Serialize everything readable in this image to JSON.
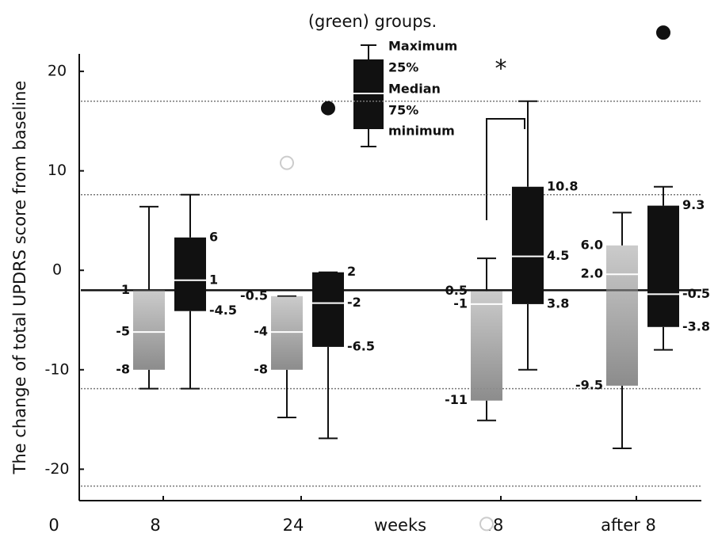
{
  "chart_data": {
    "type": "box",
    "title": "(green) groups.",
    "y_label": "The change of total UPDRS score from baseline",
    "x_label": "weeks",
    "x_origin_label": "0",
    "ylim": [
      -23,
      22
    ],
    "yticks": [
      -20,
      -10,
      0,
      10,
      20
    ],
    "colors": [
      "#8c8c8c",
      "#111111"
    ],
    "baseline": -2,
    "reference_lines": [
      17,
      7.6,
      -11.9,
      -21.7
    ],
    "legend_labels": [
      "Maximum",
      "25%",
      "Median",
      "75%",
      "minimum"
    ],
    "significance": "*",
    "groups": [
      {
        "label": "8",
        "boxes": [
          {
            "min": -11.9,
            "q1": -10,
            "median": -6.2,
            "q3": -2,
            "max": 6.4,
            "outliers": [],
            "notes": [
              "1",
              "-5",
              "-8"
            ]
          },
          {
            "min": -11.9,
            "q1": -4.1,
            "median": -1,
            "q3": 3.3,
            "max": 7.6,
            "outliers": [],
            "notes": [
              "6",
              "1",
              "-4.5"
            ]
          }
        ]
      },
      {
        "label": "24",
        "boxes": [
          {
            "min": -14.8,
            "q1": -10,
            "median": -6.2,
            "q3": -2.6,
            "max": -2.6,
            "outliers": [
              10.8
            ],
            "notes": [
              "-0.5",
              "-4",
              "-8"
            ]
          },
          {
            "min": -16.9,
            "q1": -7.7,
            "median": -3.3,
            "q3": -0.2,
            "max": -0.2,
            "outliers": [
              16.3
            ],
            "notes": [
              "2",
              "-2",
              "-6.5"
            ]
          }
        ]
      },
      {
        "label": "48",
        "boxes": [
          {
            "min": -15.1,
            "q1": -13.1,
            "median": -3.4,
            "q3": -2.1,
            "max": 1.2,
            "outliers": [
              -25.5
            ],
            "notes": [
              "0.5",
              "-1",
              "-11"
            ]
          },
          {
            "min": -10,
            "q1": -3.4,
            "median": 1.4,
            "q3": 8.4,
            "max": 17,
            "outliers": [],
            "notes": [
              "10.8",
              "4.5",
              "3.8"
            ]
          }
        ]
      },
      {
        "label": "after 8",
        "boxes": [
          {
            "min": -17.9,
            "q1": -11.6,
            "median": -0.4,
            "q3": 2.5,
            "max": 5.8,
            "outliers": [],
            "notes": [
              "6.0",
              "2.0",
              "-9.5"
            ]
          },
          {
            "min": -8,
            "q1": -5.7,
            "median": -2.4,
            "q3": 6.5,
            "max": 8.4,
            "outliers": [
              23.9
            ],
            "notes": [
              "9.3",
              "-0.5",
              "-3.8"
            ]
          }
        ]
      }
    ]
  }
}
